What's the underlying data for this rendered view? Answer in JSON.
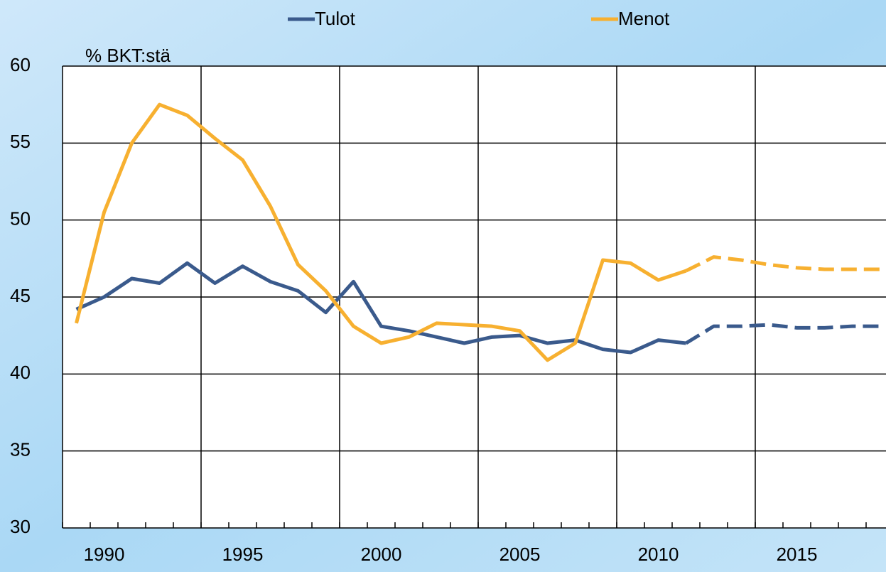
{
  "chart_data": {
    "type": "line",
    "y_label": "% BKT:stä",
    "categories": [
      "1989",
      "1990",
      "1991",
      "1992",
      "1993",
      "1994",
      "1995",
      "1996",
      "1997",
      "1998",
      "1999",
      "2000",
      "2001",
      "2002",
      "2003",
      "2004",
      "2005",
      "2006",
      "2007",
      "2008",
      "2009",
      "2010",
      "2011",
      "2012",
      "2013",
      "2014",
      "2015",
      "2016",
      "2017",
      "2018"
    ],
    "category_labels": [
      null,
      "1990",
      null,
      null,
      null,
      null,
      "1995",
      null,
      null,
      null,
      null,
      "2000",
      null,
      null,
      null,
      null,
      "2005",
      null,
      null,
      null,
      null,
      "2010",
      null,
      null,
      null,
      null,
      "2015",
      null,
      null,
      null
    ],
    "dashed_from": "2011",
    "series": [
      {
        "name": "Tulot",
        "color": "#3a5a8c",
        "values": [
          44.2,
          45.0,
          46.2,
          45.9,
          47.2,
          45.9,
          47.0,
          46.0,
          45.4,
          44.0,
          46.0,
          43.1,
          42.8,
          42.4,
          42.0,
          42.4,
          42.5,
          42.0,
          42.2,
          41.6,
          41.4,
          42.2,
          42.0,
          43.1,
          43.1,
          43.2,
          43.0,
          43.0,
          43.1,
          43.1
        ]
      },
      {
        "name": "Menot",
        "color": "#f7b030",
        "values": [
          43.3,
          50.5,
          55.0,
          57.5,
          56.8,
          55.3,
          53.9,
          50.9,
          47.1,
          45.4,
          43.1,
          42.0,
          42.4,
          43.3,
          43.2,
          43.1,
          42.8,
          40.9,
          42.0,
          47.4,
          47.2,
          46.1,
          46.7,
          47.6,
          47.4,
          47.1,
          46.9,
          46.8,
          46.8,
          46.8
        ]
      }
    ],
    "ylim": [
      30,
      60
    ],
    "yticks": [
      30,
      35,
      40,
      45,
      50,
      55,
      60
    ],
    "grid": true
  }
}
